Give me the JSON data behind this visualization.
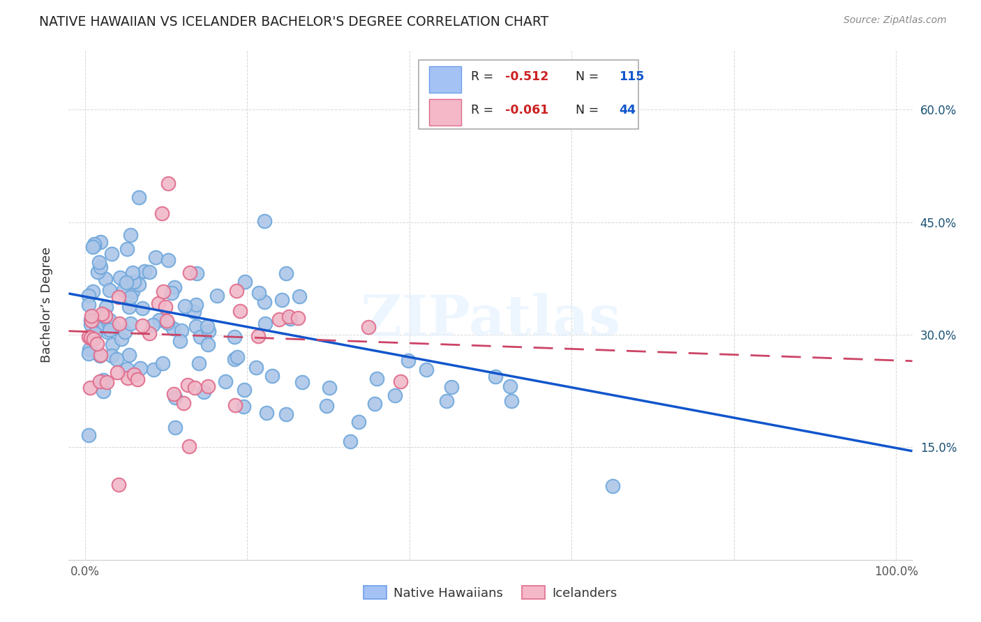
{
  "title": "NATIVE HAWAIIAN VS ICELANDER BACHELOR'S DEGREE CORRELATION CHART",
  "source": "Source: ZipAtlas.com",
  "ylabel": "Bachelor’s Degree",
  "watermark": "ZIPatlas",
  "blue_face": "#adc6e8",
  "blue_edge": "#6fa8dc",
  "pink_face": "#f0b8c8",
  "pink_edge": "#e06c8c",
  "trend_blue": "#1155cc",
  "trend_pink": "#cc4466",
  "legend_blue_face": "#a4c2f4",
  "legend_blue_edge": "#6d9eeb",
  "legend_pink_face": "#f4b8c8",
  "legend_pink_edge": "#e06c8c",
  "r1_text": "-0.512",
  "n1_text": "115",
  "r2_text": "-0.061",
  "n2_text": "44",
  "nh_trend_x0": 0.0,
  "nh_trend_y0": 0.355,
  "nh_trend_x1": 1.0,
  "nh_trend_y1": 0.145,
  "ice_trend_x0": 0.0,
  "ice_trend_y0": 0.305,
  "ice_trend_x1": 1.0,
  "ice_trend_y1": 0.265,
  "xlim": [
    -0.02,
    1.02
  ],
  "ylim": [
    0.0,
    0.68
  ],
  "yticks": [
    0.15,
    0.3,
    0.45,
    0.6
  ],
  "ytick_labels": [
    "15.0%",
    "30.0%",
    "45.0%",
    "60.0%"
  ]
}
